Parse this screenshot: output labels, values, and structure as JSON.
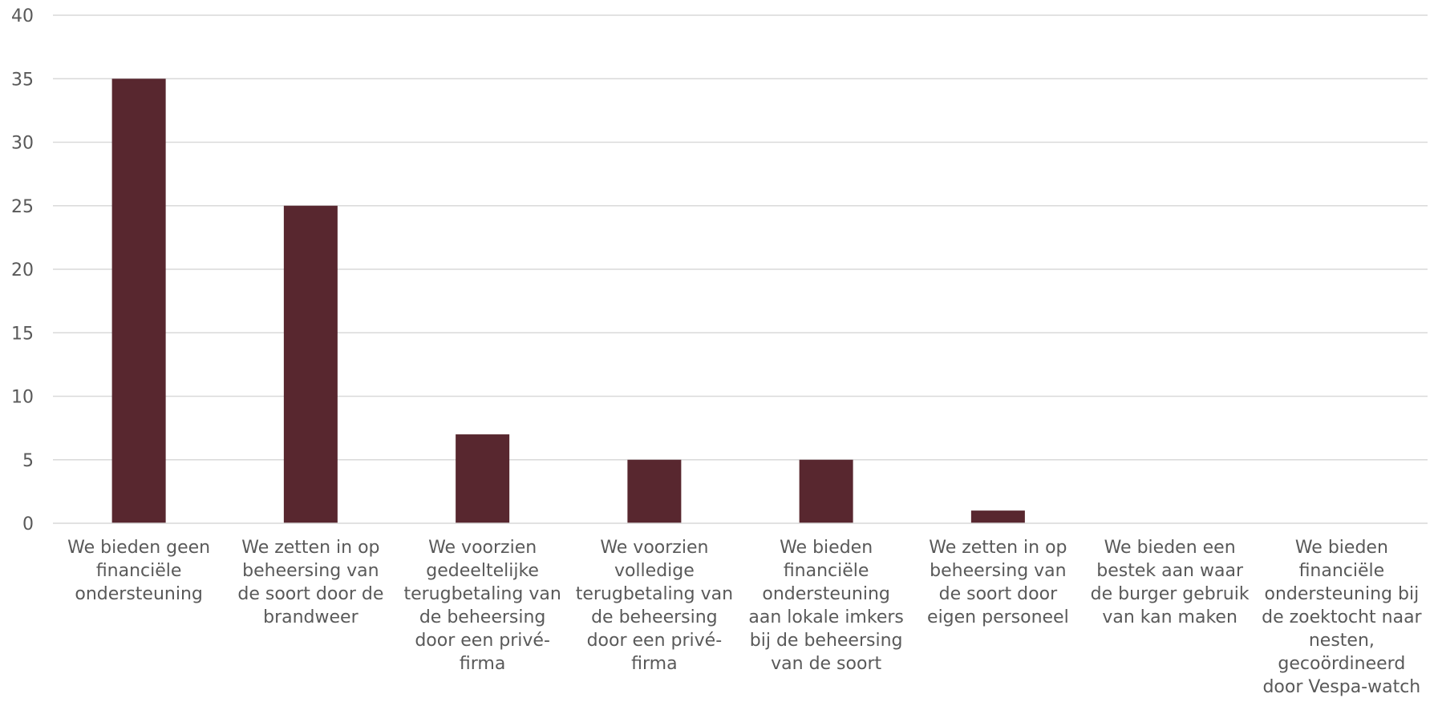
{
  "chart_data": {
    "type": "bar",
    "title": "",
    "xlabel": "",
    "ylabel": "",
    "ylim": [
      0,
      40
    ],
    "yticks": [
      0,
      5,
      10,
      15,
      20,
      25,
      30,
      35,
      40
    ],
    "grid": true,
    "legend": "none",
    "bar_color": "#58272F",
    "categories": [
      "We bieden geen financiële ondersteuning",
      "We zetten in op beheersing van de soort door de brandweer",
      "We voorzien gedeeltelijke terugbetaling van de beheersing door een privé-firma",
      "We voorzien volledige terugbetaling van de beheersing door een privé-firma",
      "We bieden financiële ondersteuning aan lokale imkers bij de beheersing van de soort",
      "We zetten in op beheersing van de soort door eigen personeel",
      "We bieden een bestek aan waar de burger gebruik van kan maken",
      "We bieden financiële ondersteuning bij de zoektocht naar nesten, gecoördineerd door Vespa-watch"
    ],
    "values": [
      35,
      25,
      7,
      5,
      5,
      1,
      0,
      0
    ]
  }
}
